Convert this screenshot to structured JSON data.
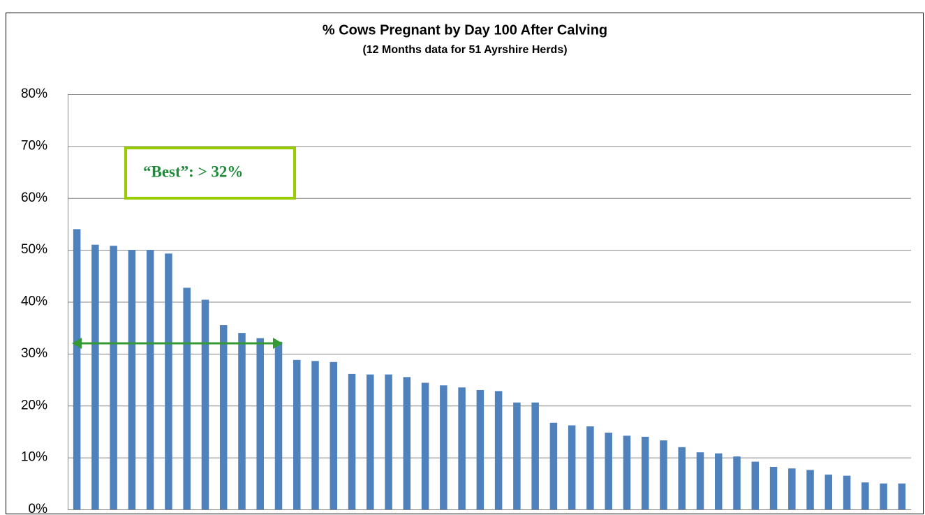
{
  "chart_data": {
    "type": "bar",
    "title": "% Cows Pregnant by Day 100 After Calving",
    "subtitle": "(12 Months data for 51 Ayrshire Herds)",
    "categories": [
      null,
      null,
      null,
      null,
      null,
      null,
      null,
      null,
      null,
      null,
      null,
      null,
      null,
      null,
      null,
      null,
      null,
      null,
      null,
      null,
      null,
      null,
      null,
      null,
      null,
      null,
      null,
      null,
      null,
      null,
      null,
      null,
      null,
      null,
      null,
      null,
      null,
      null,
      null,
      null,
      null,
      null,
      null,
      null,
      null,
      null
    ],
    "values": [
      54,
      51,
      50.8,
      50,
      50,
      49.3,
      42.7,
      40.4,
      35.5,
      34,
      33,
      32.3,
      28.8,
      28.6,
      28.4,
      26.1,
      26,
      26,
      25.5,
      24.4,
      23.9,
      23.5,
      23,
      22.8,
      20.6,
      20.6,
      16.7,
      16.2,
      16,
      14.8,
      14.2,
      14,
      13.3,
      12,
      11,
      10.8,
      10.2,
      9.2,
      8.2,
      7.9,
      7.6,
      6.7,
      6.5,
      5.2,
      5,
      5
    ],
    "color": "#4f81bd",
    "ylim": [
      0,
      80
    ],
    "yticks": [
      {
        "value": 0,
        "label": "0%"
      },
      {
        "value": 10,
        "label": "10%"
      },
      {
        "value": 20,
        "label": "20%"
      },
      {
        "value": 30,
        "label": "30%"
      },
      {
        "value": 40,
        "label": "40%"
      },
      {
        "value": 50,
        "label": "50%"
      },
      {
        "value": 60,
        "label": "60%"
      },
      {
        "value": 70,
        "label": "70%"
      },
      {
        "value": 80,
        "label": "80%"
      }
    ],
    "grid": true,
    "annotation": {
      "text": "“Best”:  > 32%",
      "value": 32
    }
  }
}
